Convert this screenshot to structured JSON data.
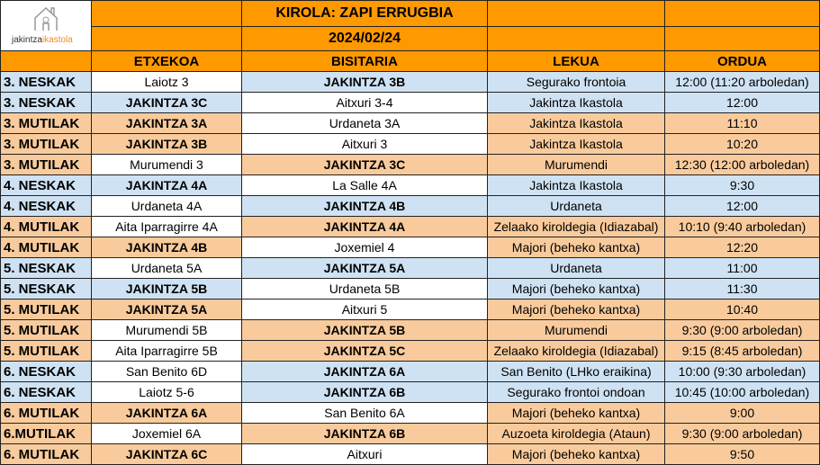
{
  "logo": {
    "text_left": "jakintza",
    "text_right": "ikastola"
  },
  "title": "KIROLA: ZAPI ERRUGBIA",
  "date": "2024/02/24",
  "columns": [
    "",
    "ETXEKOA",
    "BISITARIA",
    "LEKUA",
    "ORDUA"
  ],
  "colors": {
    "header": "#ff9900",
    "neskak": "#cfe2f3",
    "mutilak": "#f9cb9c",
    "plain": "#ffffff"
  },
  "rows": [
    {
      "category": "3. NESKAK",
      "home": "Laiotz 3",
      "away": "JAKINTZA 3B",
      "place": "Segurako frontoia",
      "time": "12:00 (11:20 arboledan)",
      "color": "blue"
    },
    {
      "category": "3. NESKAK",
      "home": "JAKINTZA 3C",
      "away": "Aitxuri 3-4",
      "place": "Jakintza Ikastola",
      "time": "12:00",
      "color": "blue"
    },
    {
      "category": "3. MUTILAK",
      "home": "JAKINTZA 3A",
      "away": "Urdaneta 3A",
      "place": "Jakintza Ikastola",
      "time": "11:10",
      "color": "orange"
    },
    {
      "category": "3. MUTILAK",
      "home": "JAKINTZA 3B",
      "away": "Aitxuri 3",
      "place": "Jakintza Ikastola",
      "time": "10:20",
      "color": "orange"
    },
    {
      "category": "3. MUTILAK",
      "home": "Murumendi 3",
      "away": "JAKINTZA 3C",
      "place": "Murumendi",
      "time": "12:30 (12:00 arboledan)",
      "color": "orange"
    },
    {
      "category": "4. NESKAK",
      "home": "JAKINTZA 4A",
      "away": "La Salle 4A",
      "place": "Jakintza Ikastola",
      "time": "9:30",
      "color": "blue"
    },
    {
      "category": "4. NESKAK",
      "home": "Urdaneta 4A",
      "away": "JAKINTZA 4B",
      "place": "Urdaneta",
      "time": "12:00",
      "color": "blue"
    },
    {
      "category": "4. MUTILAK",
      "home": "Aita Iparragirre 4A",
      "away": "JAKINTZA 4A",
      "place": "Zelaako kiroldegia (Idiazabal)",
      "time": "10:10 (9:40 arboledan)",
      "color": "orange"
    },
    {
      "category": "4. MUTILAK",
      "home": "JAKINTZA 4B",
      "away": "Joxemiel 4",
      "place": "Majori (beheko kantxa)",
      "time": "12:20",
      "color": "orange"
    },
    {
      "category": "5. NESKAK",
      "home": "Urdaneta 5A",
      "away": "JAKINTZA 5A",
      "place": "Urdaneta",
      "time": "11:00",
      "color": "blue"
    },
    {
      "category": "5. NESKAK",
      "home": "JAKINTZA 5B",
      "away": "Urdaneta 5B",
      "place": "Majori (beheko kantxa)",
      "time": "11:30",
      "color": "blue"
    },
    {
      "category": "5. MUTILAK",
      "home": "JAKINTZA 5A",
      "away": "Aitxuri 5",
      "place": "Majori (beheko kantxa)",
      "time": "10:40",
      "color": "orange"
    },
    {
      "category": "5. MUTILAK",
      "home": "Murumendi 5B",
      "away": "JAKINTZA 5B",
      "place": "Murumendi",
      "time": "9:30 (9:00 arboledan)",
      "color": "orange"
    },
    {
      "category": "5. MUTILAK",
      "home": "Aita Iparragirre 5B",
      "away": "JAKINTZA 5C",
      "place": "Zelaako kiroldegia (Idiazabal)",
      "time": "9:15 (8:45 arboledan)",
      "color": "orange"
    },
    {
      "category": "6. NESKAK",
      "home": "San Benito 6D",
      "away": "JAKINTZA 6A",
      "place": "San Benito (LHko eraikina)",
      "time": "10:00 (9:30 arboledan)",
      "color": "blue"
    },
    {
      "category": "6. NESKAK",
      "home": "Laiotz 5-6",
      "away": "JAKINTZA 6B",
      "place": "Segurako frontoi ondoan",
      "time": "10:45 (10:00 arboledan)",
      "color": "blue"
    },
    {
      "category": "6. MUTILAK",
      "home": "JAKINTZA 6A",
      "away": "San Benito 6A",
      "place": "Majori (beheko kantxa)",
      "time": "9:00",
      "color": "orange"
    },
    {
      "category": "6.MUTILAK",
      "home": "Joxemiel 6A",
      "away": "JAKINTZA 6B",
      "place": "Auzoeta kiroldegia (Ataun)",
      "time": "9:30 (9:00 arboledan)",
      "color": "orange"
    },
    {
      "category": "6. MUTILAK",
      "home": "JAKINTZA 6C",
      "away": "Aitxuri",
      "place": "Majori (beheko kantxa)",
      "time": "9:50",
      "color": "orange"
    }
  ]
}
